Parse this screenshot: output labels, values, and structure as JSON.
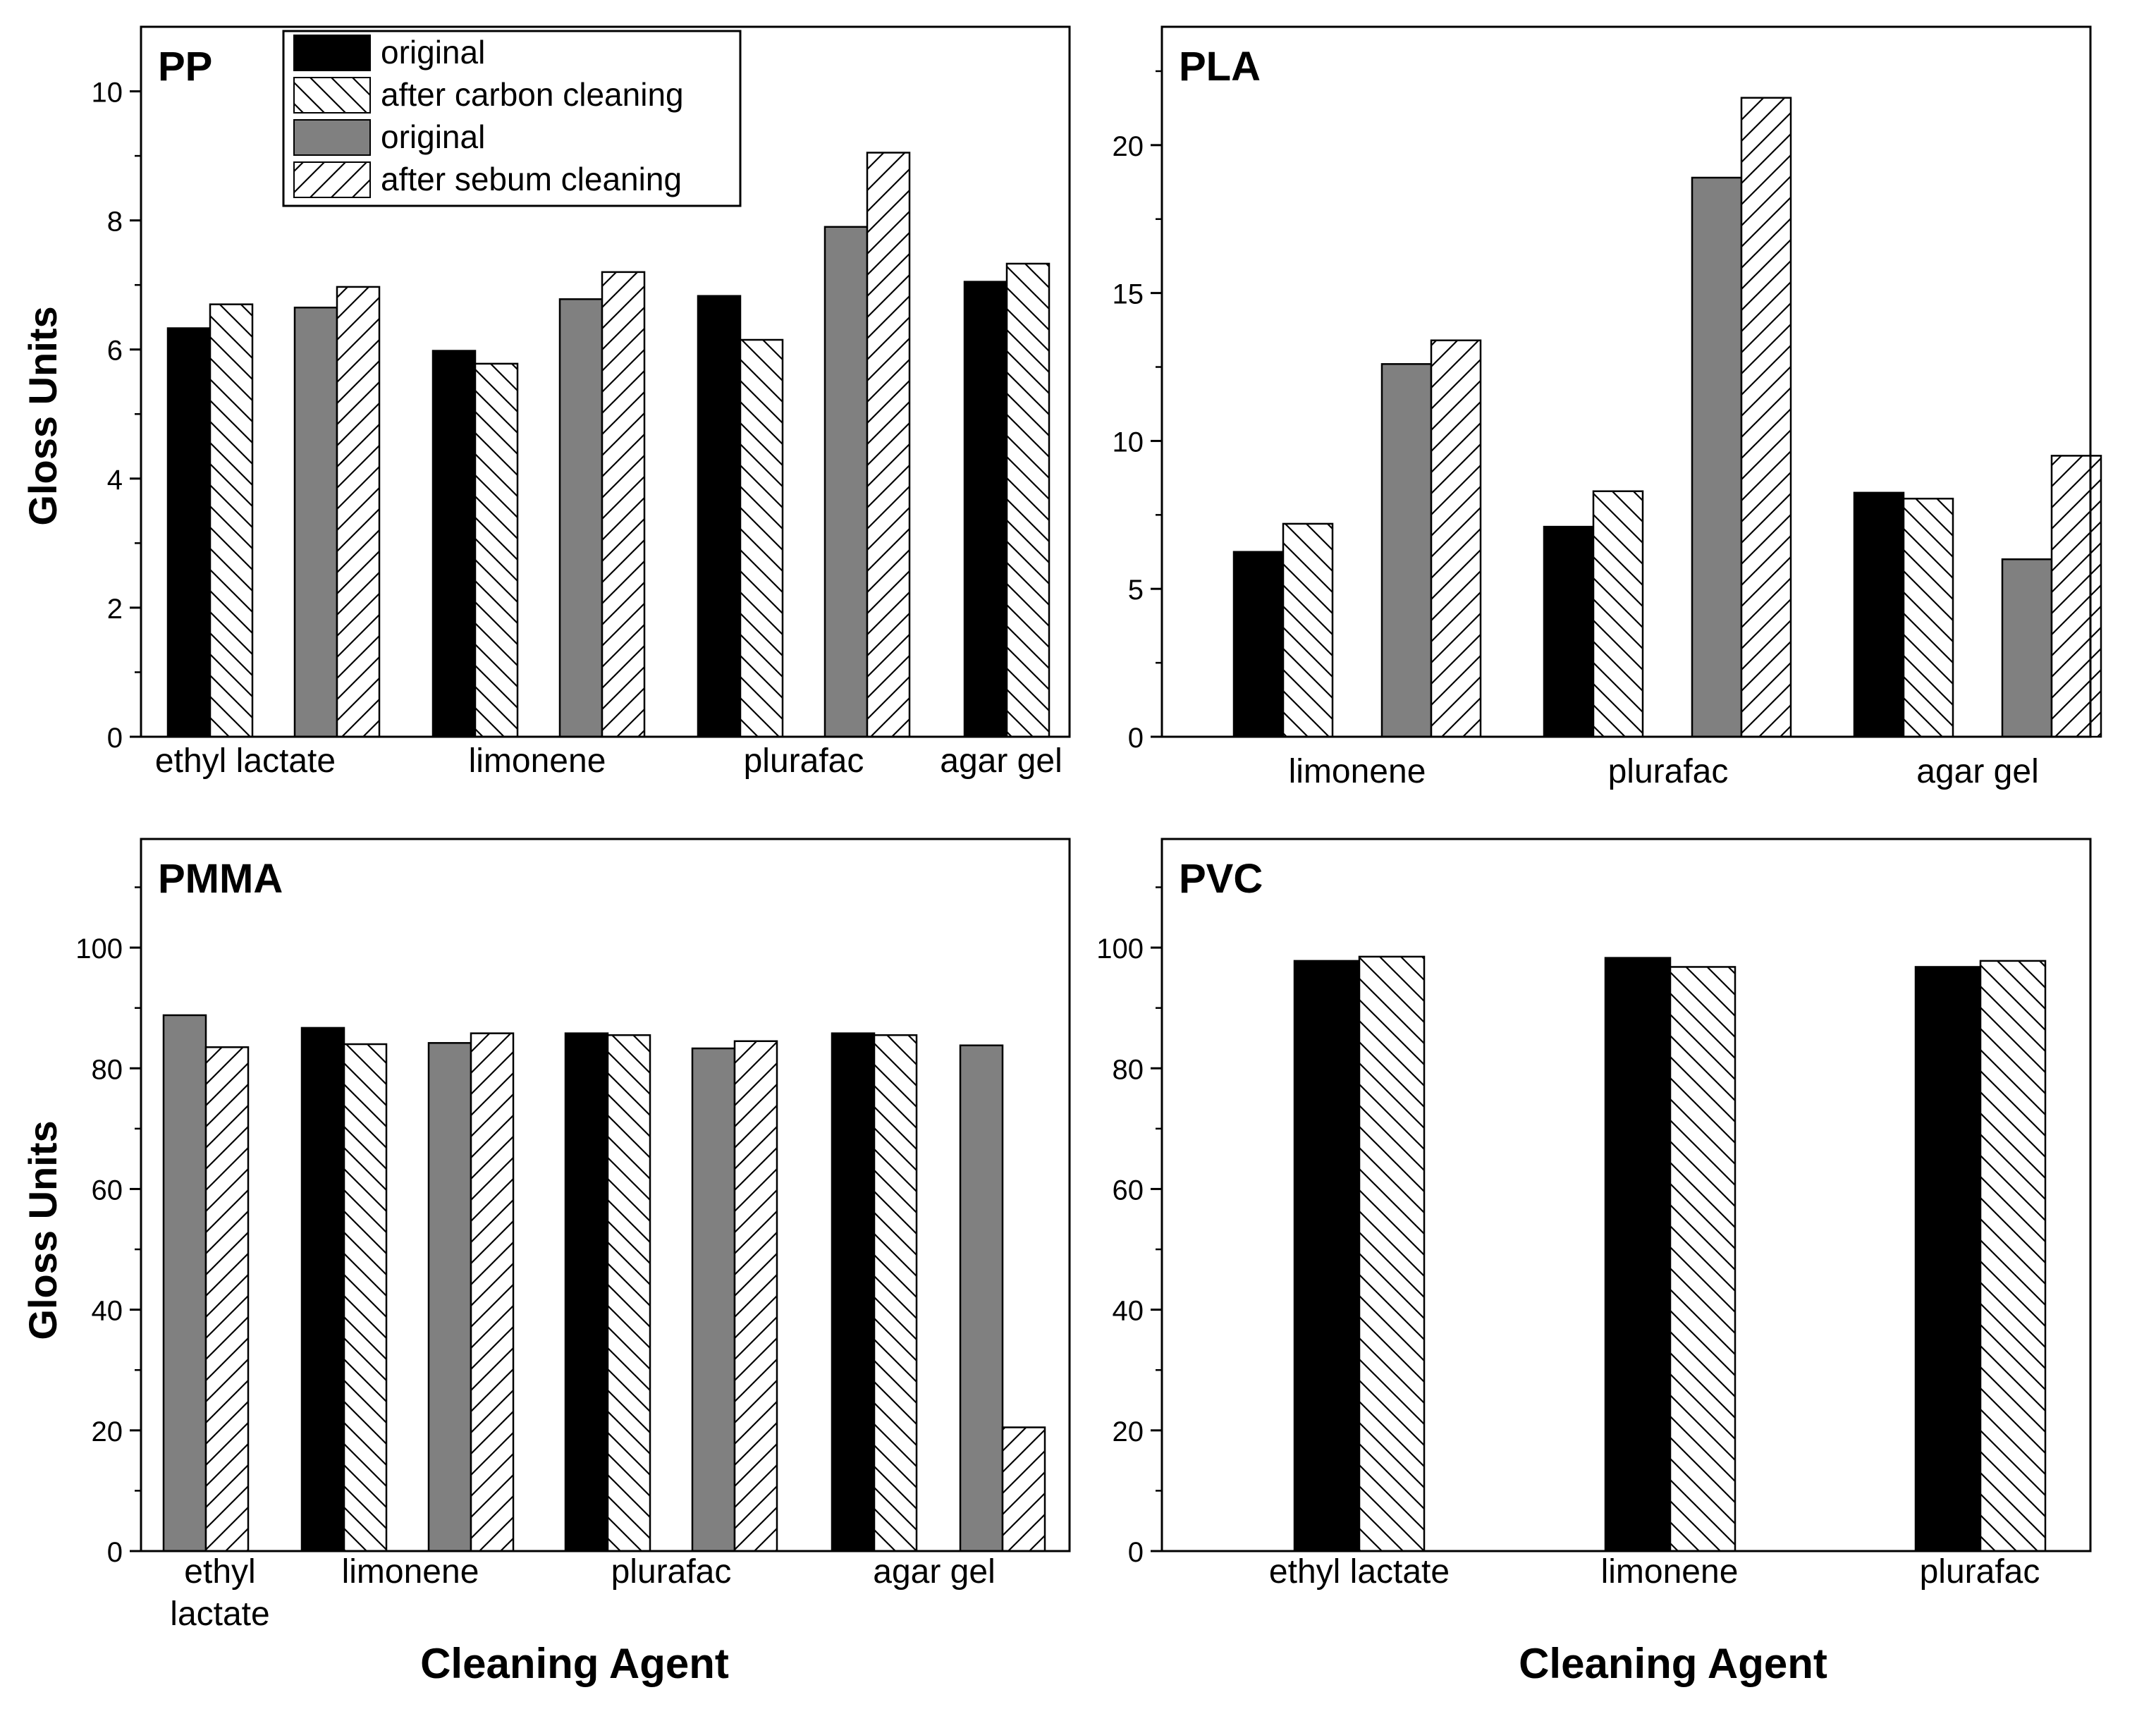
{
  "figure": {
    "x_axis_label": "Cleaning Agent",
    "y_axis_label": "Gloss Units"
  },
  "legend": {
    "entries": [
      {
        "label": "original",
        "style": "black"
      },
      {
        "label": "after carbon cleaning",
        "style": "hatch-down"
      },
      {
        "label": "original",
        "style": "gray"
      },
      {
        "label": "after sebum cleaning",
        "style": "hatch-up"
      }
    ]
  },
  "colors": {
    "original_carbon": "#000000",
    "original_sebum": "#808080",
    "hatch_fill": "#ffffff",
    "axis": "#000000"
  },
  "chart_data": [
    {
      "type": "bar",
      "title": "PP",
      "xlabel": "",
      "ylabel": "Gloss Units",
      "ylim": [
        0,
        11
      ],
      "yticks": [
        0,
        2,
        4,
        6,
        8,
        10
      ],
      "groups": [
        {
          "label": "ethyl lactate",
          "bars": [
            {
              "series": "original (carbon)",
              "value": 6.33
            },
            {
              "series": "after carbon cleaning",
              "value": 6.7
            },
            {
              "series": "original (sebum)",
              "value": 6.65
            },
            {
              "series": "after sebum cleaning",
              "value": 6.97
            }
          ]
        },
        {
          "label": "limonene",
          "bars": [
            {
              "series": "original (carbon)",
              "value": 5.98
            },
            {
              "series": "after carbon cleaning",
              "value": 5.78
            },
            {
              "series": "original (sebum)",
              "value": 6.78
            },
            {
              "series": "after sebum cleaning",
              "value": 7.2
            }
          ]
        },
        {
          "label": "plurafac",
          "bars": [
            {
              "series": "original (carbon)",
              "value": 6.83
            },
            {
              "series": "after carbon cleaning",
              "value": 6.15
            },
            {
              "series": "original (sebum)",
              "value": 7.9
            },
            {
              "series": "after sebum cleaning",
              "value": 9.05
            }
          ]
        },
        {
          "label": "agar gel",
          "bars": [
            {
              "series": "original (carbon)",
              "value": 7.05
            },
            {
              "series": "after carbon cleaning",
              "value": 7.33
            }
          ]
        }
      ]
    },
    {
      "type": "bar",
      "title": "PLA",
      "xlabel": "",
      "ylabel": "",
      "ylim": [
        0,
        24
      ],
      "yticks": [
        0,
        5,
        10,
        15,
        20
      ],
      "groups": [
        {
          "label": "limonene",
          "bars": [
            {
              "series": "original (carbon)",
              "value": 6.25
            },
            {
              "series": "after carbon cleaning",
              "value": 7.2
            },
            {
              "series": "original (sebum)",
              "value": 12.6
            },
            {
              "series": "after sebum cleaning",
              "value": 13.4
            }
          ]
        },
        {
          "label": "plurafac",
          "bars": [
            {
              "series": "original (carbon)",
              "value": 7.1
            },
            {
              "series": "after carbon cleaning",
              "value": 8.3
            },
            {
              "series": "original (sebum)",
              "value": 18.9
            },
            {
              "series": "after sebum cleaning",
              "value": 21.6
            }
          ]
        },
        {
          "label": "agar gel",
          "bars": [
            {
              "series": "original (carbon)",
              "value": 8.25
            },
            {
              "series": "after carbon cleaning",
              "value": 8.05
            },
            {
              "series": "original (sebum)",
              "value": 6.0
            },
            {
              "series": "after sebum cleaning",
              "value": 9.5
            }
          ]
        }
      ]
    },
    {
      "type": "bar",
      "title": "PMMA",
      "xlabel": "Cleaning Agent",
      "ylabel": "Gloss Units",
      "ylim": [
        0,
        118
      ],
      "yticks": [
        0,
        20,
        40,
        60,
        80,
        100
      ],
      "groups": [
        {
          "label": "ethyl lactate",
          "label_lines": [
            "ethyl",
            "lactate"
          ],
          "bars": [
            {
              "series": "original (sebum)",
              "value": 88.8
            },
            {
              "series": "after sebum cleaning",
              "value": 83.5
            }
          ]
        },
        {
          "label": "limonene",
          "bars": [
            {
              "series": "original (carbon)",
              "value": 86.7
            },
            {
              "series": "after carbon cleaning",
              "value": 84.0
            },
            {
              "series": "original (sebum)",
              "value": 84.2
            },
            {
              "series": "after sebum cleaning",
              "value": 85.8
            }
          ]
        },
        {
          "label": "plurafac",
          "bars": [
            {
              "series": "original (carbon)",
              "value": 85.8
            },
            {
              "series": "after carbon cleaning",
              "value": 85.5
            },
            {
              "series": "original (sebum)",
              "value": 83.3
            },
            {
              "series": "after sebum cleaning",
              "value": 84.5
            }
          ]
        },
        {
          "label": "agar gel",
          "bars": [
            {
              "series": "original (carbon)",
              "value": 85.8
            },
            {
              "series": "after carbon cleaning",
              "value": 85.5
            },
            {
              "series": "original (sebum)",
              "value": 83.8
            },
            {
              "series": "after sebum cleaning",
              "value": 20.5
            }
          ]
        }
      ]
    },
    {
      "type": "bar",
      "title": "PVC",
      "xlabel": "Cleaning Agent",
      "ylabel": "",
      "ylim": [
        0,
        118
      ],
      "yticks": [
        0,
        20,
        40,
        60,
        80,
        100
      ],
      "groups": [
        {
          "label": "ethyl lactate",
          "bars": [
            {
              "series": "original (carbon)",
              "value": 97.8
            },
            {
              "series": "after carbon cleaning",
              "value": 98.5
            }
          ]
        },
        {
          "label": "limonene",
          "bars": [
            {
              "series": "original (carbon)",
              "value": 98.3
            },
            {
              "series": "after carbon cleaning",
              "value": 96.8
            }
          ]
        },
        {
          "label": "plurafac",
          "bars": [
            {
              "series": "original (carbon)",
              "value": 96.8
            },
            {
              "series": "after carbon cleaning",
              "value": 97.8
            }
          ]
        }
      ]
    }
  ]
}
